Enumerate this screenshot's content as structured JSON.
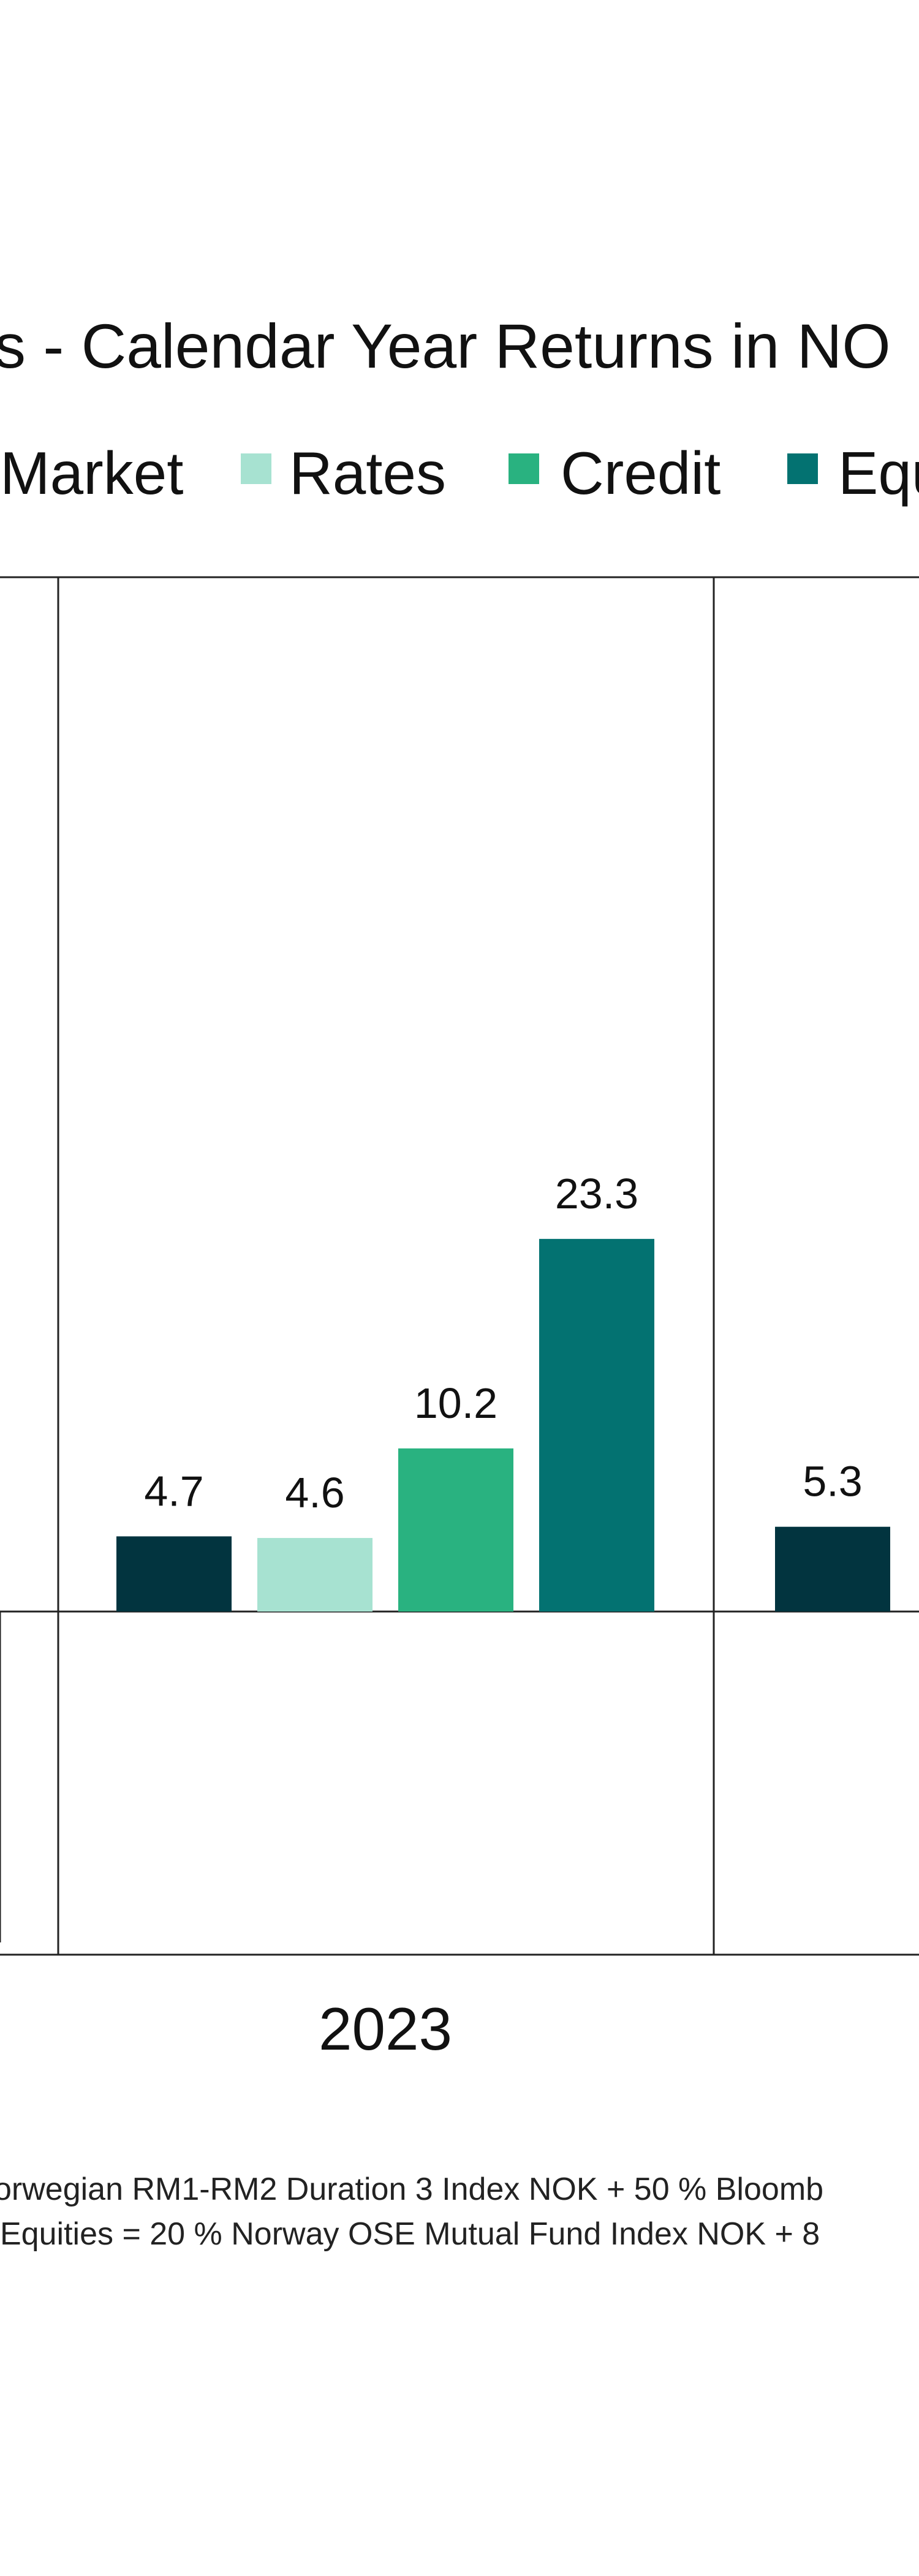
{
  "chart_data": {
    "type": "bar",
    "title": "ss - Calendar Year Returns in NO",
    "xlabel": "",
    "ylabel": "",
    "grid": false,
    "legend_position": "top",
    "categories": [
      "2023",
      ""
    ],
    "series": [
      {
        "name": "Market",
        "color": "#02343F",
        "values": [
          4.7,
          5.3
        ]
      },
      {
        "name": "Rates",
        "color": "#A7E2D1",
        "values": [
          4.6,
          null
        ]
      },
      {
        "name": "Credit",
        "color": "#29B280",
        "values": [
          10.2,
          null
        ]
      },
      {
        "name": "Equ",
        "color": "#037271",
        "values": [
          23.3,
          null
        ]
      }
    ],
    "data_labels": [
      [
        "4.7",
        "4.6",
        "10.2",
        "23.3"
      ],
      [
        "5.3",
        "",
        "",
        ""
      ]
    ],
    "ylim": [
      -10,
      25
    ],
    "footnotes": [
      "orwegian RM1-RM2 Duration 3 Index NOK + 50 % Bloomb",
      "Equities = 20 % Norway OSE Mutual Fund Index NOK + 8"
    ]
  }
}
